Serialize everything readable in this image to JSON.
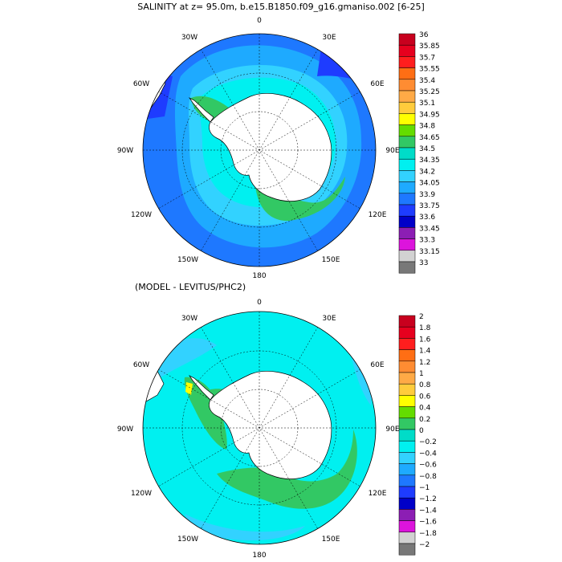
{
  "chart_data": [
    {
      "type": "heatmap",
      "projection": "south-polar-stereographic",
      "title": "SALINITY at z=  95.0m, b.e15.B1850.f09_g16.gmaniso.002 [6-25]",
      "longitude_labels": [
        "0",
        "30E",
        "60E",
        "90E",
        "120E",
        "150E",
        "180",
        "150W",
        "120W",
        "90W",
        "60W",
        "30W"
      ],
      "colorbar": {
        "levels": [
          "36",
          "35.85",
          "35.7",
          "35.55",
          "35.4",
          "35.25",
          "35.1",
          "34.95",
          "34.8",
          "34.65",
          "34.5",
          "34.35",
          "34.2",
          "34.05",
          "33.9",
          "33.75",
          "33.6",
          "33.45",
          "33.3",
          "33.15",
          "33"
        ],
        "colors": [
          "#c8001e",
          "#e6001e",
          "#ff1e1e",
          "#ff6e14",
          "#ff8c32",
          "#ffaa46",
          "#ffcc3c",
          "#ffff00",
          "#64dc00",
          "#32c864",
          "#00dcc8",
          "#00f0f0",
          "#32d2ff",
          "#1eaaff",
          "#1e78ff",
          "#1e3cff",
          "#0000c8",
          "#8c1eb4",
          "#dc14dc",
          "#d2d2d2",
          "#787878"
        ]
      }
    },
    {
      "type": "heatmap",
      "projection": "south-polar-stereographic",
      "title": "(MODEL - LEVITUS/PHC2)",
      "longitude_labels": [
        "0",
        "30E",
        "60E",
        "90E",
        "120E",
        "150E",
        "180",
        "150W",
        "120W",
        "90W",
        "60W",
        "30W"
      ],
      "colorbar": {
        "levels": [
          "2",
          "1.8",
          "1.6",
          "1.4",
          "1.2",
          "1",
          "0.8",
          "0.6",
          "0.4",
          "0.2",
          "0",
          "−0.2",
          "−0.4",
          "−0.6",
          "−0.8",
          "−1",
          "−1.2",
          "−1.4",
          "−1.6",
          "−1.8",
          "−2"
        ],
        "colors": [
          "#c8001e",
          "#e6001e",
          "#ff1e1e",
          "#ff6e14",
          "#ff8c32",
          "#ffaa46",
          "#ffcc3c",
          "#ffff00",
          "#64dc00",
          "#32c864",
          "#00dcc8",
          "#00f0f0",
          "#32d2ff",
          "#1eaaff",
          "#1e78ff",
          "#1e3cff",
          "#0000c8",
          "#8c1eb4",
          "#dc14dc",
          "#d2d2d2",
          "#787878"
        ]
      }
    }
  ]
}
